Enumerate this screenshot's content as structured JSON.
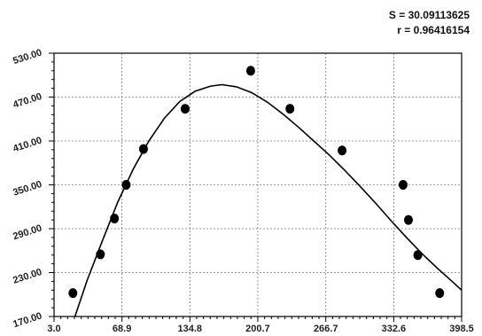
{
  "stats": {
    "s_text": "S = 30.09113625",
    "r_text": "r = 0.96416154"
  },
  "chart_data": {
    "type": "scatter",
    "title": "",
    "xlabel": "",
    "ylabel": "",
    "xlim": [
      3.0,
      398.5
    ],
    "ylim": [
      170.0,
      530.0
    ],
    "x_ticks": [
      3.0,
      68.9,
      134.8,
      200.7,
      266.7,
      332.6,
      398.5
    ],
    "x_tick_labels": [
      "3.0",
      "68.9",
      "134.8",
      "200.7",
      "266.7",
      "332.6",
      "398.5"
    ],
    "y_ticks": [
      170.0,
      230.0,
      290.0,
      350.0,
      410.0,
      470.0,
      530.0
    ],
    "y_tick_labels": [
      "170.00",
      "230.00",
      "290.00",
      "350.00",
      "410.00",
      "470.00",
      "530.00"
    ],
    "grid": true,
    "series": [
      {
        "points": [
          {
            "x": 21.3,
            "y": 202
          },
          {
            "x": 48.0,
            "y": 255
          },
          {
            "x": 61.6,
            "y": 304
          },
          {
            "x": 73.0,
            "y": 350
          },
          {
            "x": 89.8,
            "y": 399
          },
          {
            "x": 130.2,
            "y": 454
          },
          {
            "x": 193.8,
            "y": 506
          },
          {
            "x": 231.9,
            "y": 454
          },
          {
            "x": 282.5,
            "y": 397
          },
          {
            "x": 341.7,
            "y": 350
          },
          {
            "x": 346.9,
            "y": 302
          },
          {
            "x": 356.0,
            "y": 254
          },
          {
            "x": 377.2,
            "y": 202
          }
        ]
      }
    ],
    "fit_curve": [
      {
        "x": 23.3,
        "y": 170
      },
      {
        "x": 35,
        "y": 219
      },
      {
        "x": 50,
        "y": 274
      },
      {
        "x": 65,
        "y": 327
      },
      {
        "x": 80,
        "y": 372
      },
      {
        "x": 95,
        "y": 410
      },
      {
        "x": 110,
        "y": 441
      },
      {
        "x": 125,
        "y": 464
      },
      {
        "x": 140,
        "y": 478
      },
      {
        "x": 155,
        "y": 485
      },
      {
        "x": 166,
        "y": 487
      },
      {
        "x": 180,
        "y": 484
      },
      {
        "x": 195,
        "y": 476
      },
      {
        "x": 210,
        "y": 463
      },
      {
        "x": 225,
        "y": 447
      },
      {
        "x": 240,
        "y": 429
      },
      {
        "x": 255,
        "y": 410
      },
      {
        "x": 270,
        "y": 391
      },
      {
        "x": 285,
        "y": 370
      },
      {
        "x": 300,
        "y": 348
      },
      {
        "x": 315,
        "y": 325
      },
      {
        "x": 330,
        "y": 301
      },
      {
        "x": 345,
        "y": 278
      },
      {
        "x": 360,
        "y": 256
      },
      {
        "x": 375,
        "y": 236
      },
      {
        "x": 390,
        "y": 217
      },
      {
        "x": 398.5,
        "y": 206
      }
    ],
    "colors": {
      "marker": "#000000",
      "curve": "#000000",
      "grid": "#777777",
      "axis": "#000000"
    }
  }
}
